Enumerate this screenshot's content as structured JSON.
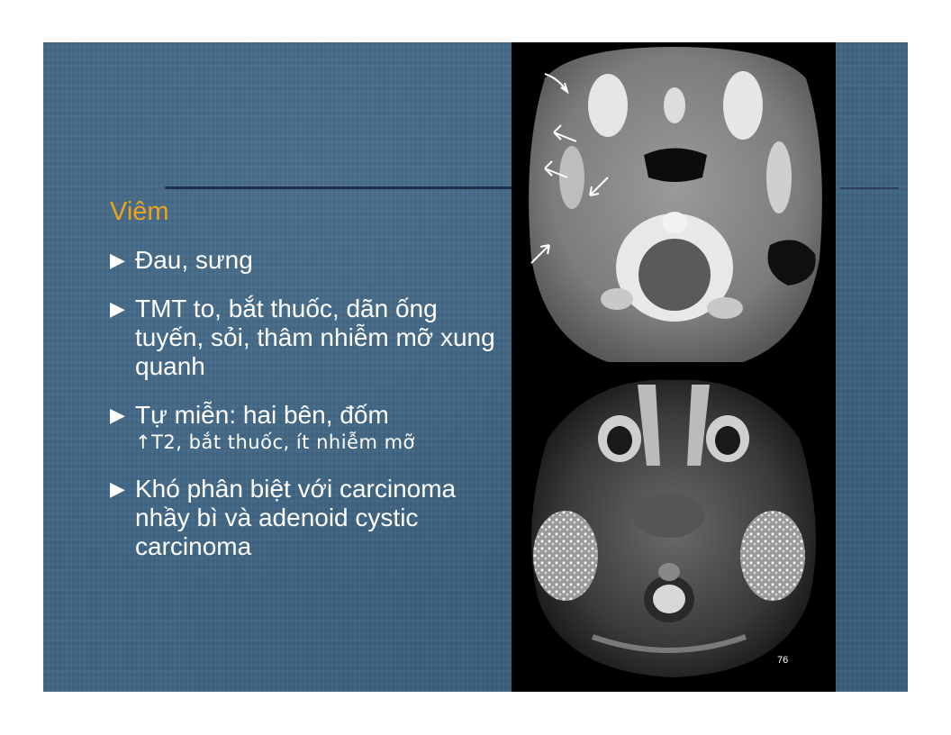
{
  "slide": {
    "heading": "Viêm",
    "bullets": [
      {
        "marker": "▶",
        "text": "Đau, sưng"
      },
      {
        "marker": "▶",
        "text": "TMT to, bắt thuốc, dãn ống tuyến, sỏi, thâm nhiễm mỡ xung quanh"
      },
      {
        "marker": "▶",
        "text": "Tự miễn: hai bên, đốm",
        "sub": "↑T2, bắt thuốc, ít nhiễm mỡ"
      },
      {
        "marker": "▶",
        "text": "Khó phân biệt với carcinoma nhầy bì và adenoid cystic carcinoma"
      }
    ],
    "page_number": "76"
  },
  "images": {
    "top": "axial-ct-scan",
    "bottom": "axial-mri-t2-scan"
  },
  "colors": {
    "background": "#3e6584",
    "heading": "#f0a31a",
    "text": "#ffffff"
  }
}
